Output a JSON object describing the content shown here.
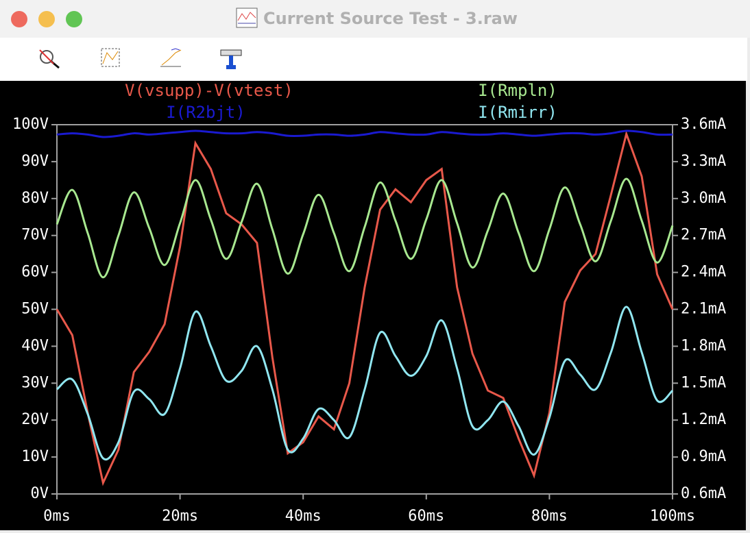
{
  "window": {
    "title": "Current Source Test - 3.raw"
  },
  "chart_data": {
    "type": "line",
    "x": [
      0,
      2.5,
      5,
      7.5,
      10,
      12.5,
      15,
      17.5,
      20,
      22.5,
      25,
      27.5,
      30,
      32.5,
      35,
      37.5,
      40,
      42.5,
      45,
      47.5,
      50,
      52.5,
      55,
      57.5,
      60,
      62.5,
      65,
      67.5,
      70,
      72.5,
      75,
      77.5,
      80,
      82.5,
      85,
      87.5,
      90,
      92.5,
      95,
      97.5,
      100
    ],
    "xlim": [
      0,
      100
    ],
    "xticks": [
      {
        "value": 0,
        "label": "0ms"
      },
      {
        "value": 20,
        "label": "20ms"
      },
      {
        "value": 40,
        "label": "40ms"
      },
      {
        "value": 60,
        "label": "60ms"
      },
      {
        "value": 80,
        "label": "80ms"
      },
      {
        "value": 100,
        "label": "100ms"
      }
    ],
    "ylim": [
      0,
      100
    ],
    "yticks": [
      {
        "value": 0,
        "label": "0V"
      },
      {
        "value": 10,
        "label": "10V"
      },
      {
        "value": 20,
        "label": "20V"
      },
      {
        "value": 30,
        "label": "30V"
      },
      {
        "value": 40,
        "label": "40V"
      },
      {
        "value": 50,
        "label": "50V"
      },
      {
        "value": 60,
        "label": "60V"
      },
      {
        "value": 70,
        "label": "70V"
      },
      {
        "value": 80,
        "label": "80V"
      },
      {
        "value": 90,
        "label": "90V"
      },
      {
        "value": 100,
        "label": "100V"
      }
    ],
    "y2lim": [
      0.6,
      3.6
    ],
    "y2ticks": [
      {
        "value": 0.6,
        "label": "0.6mA"
      },
      {
        "value": 0.9,
        "label": "0.9mA"
      },
      {
        "value": 1.2,
        "label": "1.2mA"
      },
      {
        "value": 1.5,
        "label": "1.5mA"
      },
      {
        "value": 1.8,
        "label": "1.8mA"
      },
      {
        "value": 2.1,
        "label": "2.1mA"
      },
      {
        "value": 2.4,
        "label": "2.4mA"
      },
      {
        "value": 2.7,
        "label": "2.7mA"
      },
      {
        "value": 3.0,
        "label": "3.0mA"
      },
      {
        "value": 3.3,
        "label": "3.3mA"
      },
      {
        "value": 3.6,
        "label": "3.6mA"
      }
    ],
    "series": [
      {
        "name": "V(vsupp)-V(vtest)",
        "color": "#e8584a",
        "smooth": false,
        "values": [
          50,
          43,
          22,
          3,
          12,
          33,
          38.5,
          46,
          67,
          95,
          88,
          76,
          73,
          68,
          37,
          11,
          14,
          21,
          17.5,
          30,
          56,
          77,
          82.5,
          79,
          85,
          88,
          56,
          38,
          28,
          26,
          15,
          5,
          22,
          52,
          60.5,
          65,
          81,
          97.5,
          86,
          59.5,
          50
        ]
      },
      {
        "name": "I(Rmpln)",
        "color": "#a8e890",
        "axis": "y2",
        "smooth": true,
        "values": [
          2.79,
          3.07,
          2.72,
          2.36,
          2.7,
          3.05,
          2.76,
          2.46,
          2.8,
          3.15,
          2.83,
          2.51,
          2.81,
          3.12,
          2.75,
          2.39,
          2.71,
          3.03,
          2.72,
          2.41,
          2.77,
          3.13,
          2.82,
          2.51,
          2.83,
          3.15,
          2.8,
          2.44,
          2.74,
          3.04,
          2.72,
          2.41,
          2.75,
          3.09,
          2.79,
          2.49,
          2.82,
          3.16,
          2.82,
          2.48,
          2.78
        ]
      },
      {
        "name": "I(R2bjt)",
        "color": "#1a1ad0",
        "axis": "y2",
        "smooth": true,
        "values": [
          3.52,
          3.53,
          3.52,
          3.5,
          3.51,
          3.53,
          3.52,
          3.53,
          3.54,
          3.55,
          3.54,
          3.53,
          3.53,
          3.54,
          3.53,
          3.51,
          3.51,
          3.52,
          3.52,
          3.51,
          3.52,
          3.54,
          3.53,
          3.52,
          3.52,
          3.54,
          3.53,
          3.52,
          3.52,
          3.53,
          3.52,
          3.51,
          3.52,
          3.53,
          3.53,
          3.52,
          3.53,
          3.55,
          3.54,
          3.52,
          3.52
        ]
      },
      {
        "name": "I(Rmirr)",
        "color": "#90e6f0",
        "axis": "y2",
        "smooth": true,
        "values": [
          1.45,
          1.53,
          1.25,
          0.89,
          1.02,
          1.43,
          1.37,
          1.25,
          1.62,
          2.08,
          1.8,
          1.52,
          1.6,
          1.8,
          1.45,
          0.96,
          1.05,
          1.29,
          1.2,
          1.06,
          1.45,
          1.91,
          1.72,
          1.56,
          1.72,
          2.01,
          1.62,
          1.15,
          1.2,
          1.35,
          1.15,
          0.92,
          1.22,
          1.68,
          1.57,
          1.45,
          1.75,
          2.12,
          1.75,
          1.36,
          1.44
        ]
      }
    ]
  }
}
